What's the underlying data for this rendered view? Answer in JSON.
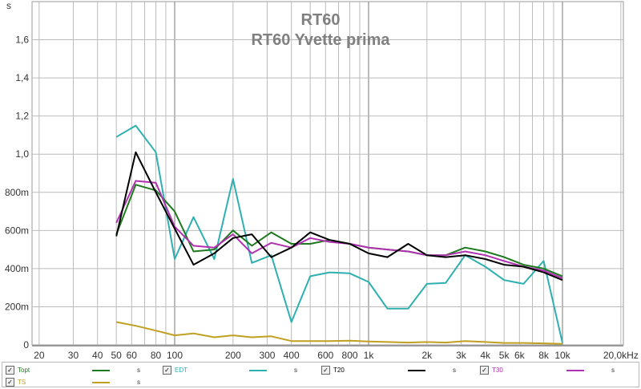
{
  "chart_data": {
    "type": "line",
    "title": "RT60",
    "subtitle": "RT60 Yvette prima",
    "ylabel": "s",
    "xscale": "log",
    "xlim": [
      18,
      20000
    ],
    "ylim": [
      0,
      1.8
    ],
    "grid": true,
    "legend_placement": "bottom",
    "yticks": [
      {
        "v": 0,
        "label": "0"
      },
      {
        "v": 0.2,
        "label": "200m"
      },
      {
        "v": 0.4,
        "label": "400m"
      },
      {
        "v": 0.6,
        "label": "600m"
      },
      {
        "v": 0.8,
        "label": "800m"
      },
      {
        "v": 1.0,
        "label": "1,0"
      },
      {
        "v": 1.2,
        "label": "1,2"
      },
      {
        "v": 1.4,
        "label": "1,4"
      },
      {
        "v": 1.6,
        "label": "1,6"
      }
    ],
    "xticks": [
      {
        "v": 20,
        "label": "20"
      },
      {
        "v": 30,
        "label": "30"
      },
      {
        "v": 40,
        "label": "40"
      },
      {
        "v": 50,
        "label": "50"
      },
      {
        "v": 60,
        "label": "60"
      },
      {
        "v": 80,
        "label": "80"
      },
      {
        "v": 100,
        "label": "100"
      },
      {
        "v": 200,
        "label": "200"
      },
      {
        "v": 300,
        "label": "300"
      },
      {
        "v": 400,
        "label": "400"
      },
      {
        "v": 600,
        "label": "600"
      },
      {
        "v": 800,
        "label": "800"
      },
      {
        "v": 1000,
        "label": "1k"
      },
      {
        "v": 2000,
        "label": "2k"
      },
      {
        "v": 3000,
        "label": "3k"
      },
      {
        "v": 4000,
        "label": "4k"
      },
      {
        "v": 5000,
        "label": "5k"
      },
      {
        "v": 6000,
        "label": "6k"
      },
      {
        "v": 8000,
        "label": "8k"
      },
      {
        "v": 10000,
        "label": "10k"
      },
      {
        "v": 20000,
        "label": "20,0kHz"
      }
    ],
    "x": [
      50,
      63,
      80,
      100,
      125,
      160,
      200,
      250,
      315,
      400,
      500,
      630,
      800,
      1000,
      1250,
      1600,
      2000,
      2500,
      3150,
      4000,
      5000,
      6300,
      8000,
      10000
    ],
    "series": [
      {
        "name": "Topt",
        "unit": "s",
        "color": "#1e7a1e",
        "values": [
          0.58,
          0.84,
          0.81,
          0.7,
          0.49,
          0.5,
          0.6,
          0.52,
          0.59,
          0.53,
          0.53,
          0.55,
          0.53,
          0.51,
          0.5,
          0.49,
          0.47,
          0.47,
          0.51,
          0.49,
          0.46,
          0.42,
          0.4,
          0.36
        ]
      },
      {
        "name": "EDT",
        "unit": "s",
        "color": "#2fb0b0",
        "values": [
          1.09,
          1.15,
          1.01,
          0.45,
          0.67,
          0.45,
          0.87,
          0.43,
          0.47,
          0.12,
          0.36,
          0.38,
          0.375,
          0.33,
          0.19,
          0.19,
          0.32,
          0.325,
          0.47,
          0.41,
          0.34,
          0.32,
          0.44,
          0.01
        ]
      },
      {
        "name": "T20",
        "unit": "s",
        "color": "#000000",
        "values": [
          0.57,
          1.01,
          0.8,
          0.61,
          0.42,
          0.48,
          0.56,
          0.58,
          0.46,
          0.51,
          0.59,
          0.55,
          0.53,
          0.48,
          0.46,
          0.53,
          0.47,
          0.46,
          0.47,
          0.45,
          0.42,
          0.41,
          0.38,
          0.34
        ]
      },
      {
        "name": "T30",
        "unit": "s",
        "color": "#b030b0",
        "values": [
          0.64,
          0.86,
          0.85,
          0.62,
          0.52,
          0.51,
          0.58,
          0.48,
          0.535,
          0.51,
          0.56,
          0.54,
          0.53,
          0.51,
          0.5,
          0.49,
          0.47,
          0.47,
          0.49,
          0.47,
          0.44,
          0.41,
          0.39,
          0.35
        ]
      },
      {
        "name": "TS",
        "unit": "s",
        "color": "#c0a020",
        "values": [
          0.12,
          0.1,
          0.075,
          0.05,
          0.06,
          0.04,
          0.05,
          0.04,
          0.045,
          0.02,
          0.02,
          0.02,
          0.022,
          0.018,
          0.015,
          0.012,
          0.015,
          0.012,
          0.02,
          0.015,
          0.01,
          0.01,
          0.008,
          0.005
        ]
      }
    ]
  },
  "legend": {
    "checked_mark": "✓"
  }
}
